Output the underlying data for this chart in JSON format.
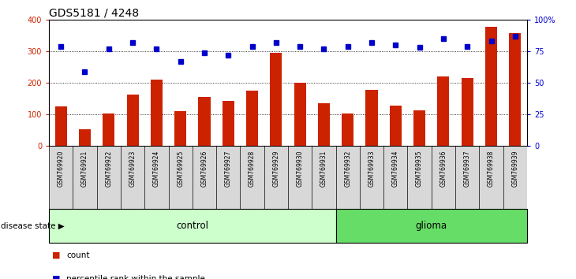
{
  "title": "GDS5181 / 4248",
  "samples": [
    "GSM769920",
    "GSM769921",
    "GSM769922",
    "GSM769923",
    "GSM769924",
    "GSM769925",
    "GSM769926",
    "GSM769927",
    "GSM769928",
    "GSM769929",
    "GSM769930",
    "GSM769931",
    "GSM769932",
    "GSM769933",
    "GSM769934",
    "GSM769935",
    "GSM769936",
    "GSM769937",
    "GSM769938",
    "GSM769939"
  ],
  "bar_values": [
    125,
    52,
    103,
    163,
    210,
    110,
    155,
    143,
    175,
    295,
    200,
    135,
    102,
    178,
    127,
    113,
    220,
    215,
    378,
    358
  ],
  "dot_values_pct": [
    79,
    59,
    77,
    82,
    77,
    67,
    74,
    72,
    79,
    82,
    79,
    77,
    79,
    82,
    80,
    78,
    85,
    79,
    83,
    87
  ],
  "bar_color": "#cc2200",
  "dot_color": "#0000cc",
  "control_count": 12,
  "glioma_count": 8,
  "control_color": "#ccffcc",
  "glioma_color": "#66dd66",
  "control_label": "control",
  "glioma_label": "glioma",
  "disease_label": "disease state",
  "ylim_left": [
    0,
    400
  ],
  "ylim_right": [
    0,
    100
  ],
  "yticks_left": [
    0,
    100,
    200,
    300,
    400
  ],
  "yticks_right": [
    0,
    25,
    50,
    75,
    100
  ],
  "xticklabel_bg": "#d8d8d8",
  "plot_bg": "#ffffff",
  "legend_count": "count",
  "legend_pct": "percentile rank within the sample",
  "title_fontsize": 10,
  "tick_fontsize": 7,
  "label_fontsize": 8
}
